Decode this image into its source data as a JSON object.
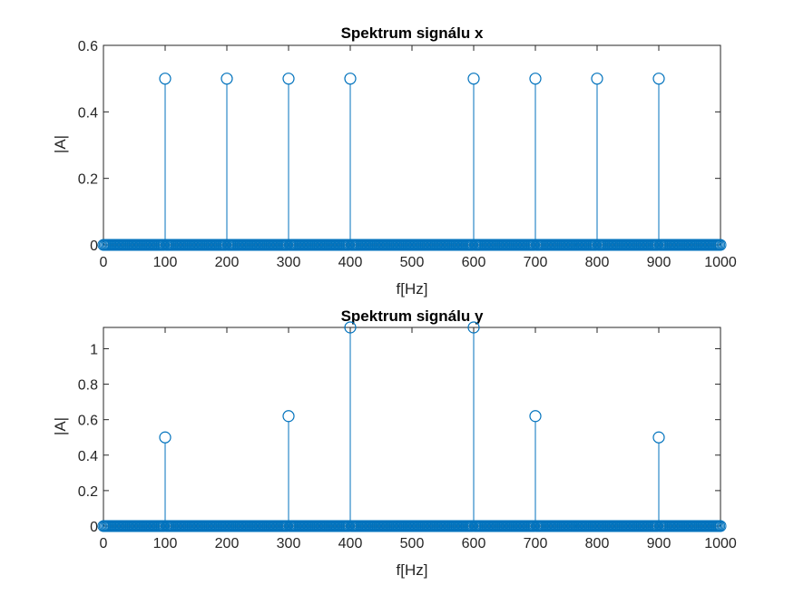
{
  "chart_data": [
    {
      "type": "stem",
      "title": "Spektrum signálu x",
      "xlabel": "f[Hz]",
      "ylabel": "|A|",
      "xlim": [
        0,
        1000
      ],
      "ylim": [
        0,
        0.6
      ],
      "xticks": [
        "0",
        "100",
        "200",
        "300",
        "400",
        "500",
        "600",
        "700",
        "800",
        "900",
        "1000"
      ],
      "yticks": [
        "0",
        "0.2",
        "0.4",
        "0.6"
      ],
      "color": "#0072BD",
      "baseline_step": 2,
      "peaks": [
        {
          "x": 100,
          "y": 0.5
        },
        {
          "x": 200,
          "y": 0.5
        },
        {
          "x": 300,
          "y": 0.5
        },
        {
          "x": 400,
          "y": 0.5
        },
        {
          "x": 600,
          "y": 0.5
        },
        {
          "x": 700,
          "y": 0.5
        },
        {
          "x": 800,
          "y": 0.5
        },
        {
          "x": 900,
          "y": 0.5
        }
      ],
      "grid": false
    },
    {
      "type": "stem",
      "title": "Spektrum signálu y",
      "xlabel": "f[Hz]",
      "ylabel": "|A|",
      "xlim": [
        0,
        1000
      ],
      "ylim": [
        0,
        1.12
      ],
      "xticks": [
        "0",
        "100",
        "200",
        "300",
        "400",
        "500",
        "600",
        "700",
        "800",
        "900",
        "1000"
      ],
      "yticks": [
        "0",
        "0.2",
        "0.4",
        "0.6",
        "0.8",
        "1"
      ],
      "color": "#0072BD",
      "baseline_step": 2,
      "peaks": [
        {
          "x": 100,
          "y": 0.5
        },
        {
          "x": 300,
          "y": 0.62
        },
        {
          "x": 400,
          "y": 1.12
        },
        {
          "x": 600,
          "y": 1.12
        },
        {
          "x": 700,
          "y": 0.62
        },
        {
          "x": 900,
          "y": 0.5
        }
      ],
      "grid": false
    }
  ]
}
